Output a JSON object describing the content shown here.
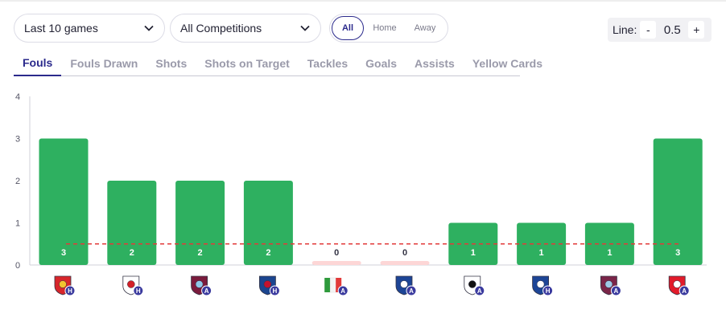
{
  "filters": {
    "games": "Last 10 games",
    "competition": "All Competitions",
    "venue_options": [
      "All",
      "Home",
      "Away"
    ],
    "venue_selected": "All"
  },
  "line": {
    "label": "Line:",
    "minus": "-",
    "value": "0.5",
    "plus": "+"
  },
  "tabs": [
    {
      "label": "Fouls",
      "active": true
    },
    {
      "label": "Fouls Drawn",
      "active": false
    },
    {
      "label": "Shots",
      "active": false
    },
    {
      "label": "Shots on Target",
      "active": false
    },
    {
      "label": "Tackles",
      "active": false
    },
    {
      "label": "Goals",
      "active": false
    },
    {
      "label": "Assists",
      "active": false
    },
    {
      "label": "Yellow Cards",
      "active": false
    }
  ],
  "colors": {
    "over": "#2eb060",
    "under": "#fdd6d6",
    "line": "#e23a3a",
    "accent": "#2b2a8c",
    "badge": "#3a3a9e"
  },
  "chart_data": {
    "type": "bar",
    "categories": [
      "Manchester United (H)",
      "Nottingham Forest (H)",
      "Aston Villa (A)",
      "Crystal Palace (H)",
      "Italy (A)",
      "Chelsea (A)",
      "Fulham (A)",
      "Chelsea (H)",
      "Burnley (A)",
      "Sunderland (A)"
    ],
    "values": [
      3,
      2,
      2,
      2,
      0,
      0,
      1,
      1,
      1,
      3
    ],
    "venues": [
      "H",
      "H",
      "A",
      "H",
      "A",
      "A",
      "A",
      "H",
      "A",
      "A"
    ],
    "icons": [
      "man-utd-crest-icon",
      "nottingham-forest-crest-icon",
      "aston-villa-crest-icon",
      "crystal-palace-crest-icon",
      "italy-flag-icon",
      "chelsea-crest-icon",
      "fulham-crest-icon",
      "chelsea-crest-icon",
      "burnley-crest-icon",
      "sunderland-crest-icon"
    ],
    "threshold": 0.5,
    "ylim": [
      0,
      4
    ],
    "yticks": [
      "0",
      "1",
      "2",
      "3",
      "4"
    ],
    "title": "",
    "xlabel": "",
    "ylabel": ""
  }
}
